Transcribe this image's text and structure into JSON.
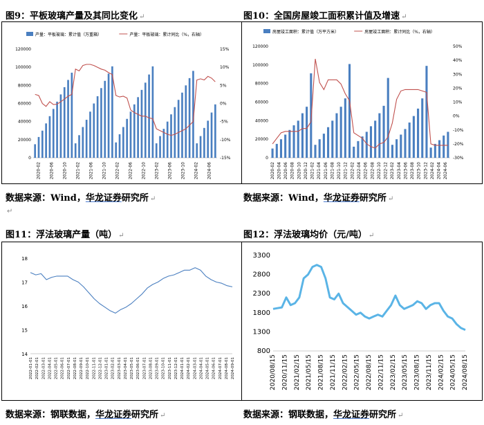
{
  "panels": {
    "p9": {
      "title": "图9：平板玻璃产量及其同比变化",
      "source_prefix": "数据来源：Wind，",
      "source_brand": "华龙证券",
      "source_suffix": "研究所"
    },
    "p10": {
      "title": "图10：全国房屋竣工面积累计值及增速",
      "source_prefix": "数据来源：Wind，",
      "source_brand": "华龙证券",
      "source_suffix": "研究所"
    },
    "p11": {
      "title": "图11：浮法玻璃产量（吨）",
      "source_prefix": "数据来源：钢联数据，",
      "source_brand": "华龙证券",
      "source_suffix": "研究所"
    },
    "p12": {
      "title": "图12：浮法玻璃均价（元/吨）",
      "source_prefix": "数据来源：钢联数据，",
      "source_brand": "华龙证券",
      "source_suffix": "研究所"
    }
  },
  "chart_data": [
    {
      "id": "c9",
      "type": "bar",
      "legend": [
        "产量：平板玻璃：累计值（万重箱）",
        "产量：平板玻璃：累计同比（%，右轴）"
      ],
      "legend_position": "top",
      "colors": {
        "bar": "#4a7fc0",
        "line": "#c0504d"
      },
      "ylim": [
        0,
        120000
      ],
      "yticks": [
        "0",
        "20000",
        "40000",
        "60000",
        "80000",
        "100000",
        "120000"
      ],
      "y2lim": [
        -15,
        15
      ],
      "y2ticks": [
        "-15%",
        "-10%",
        "-5%",
        "0%",
        "5%",
        "10%",
        "15%"
      ],
      "xticks": [
        "2020-02",
        "2020-06",
        "2020-10",
        "2021-02",
        "2021-06",
        "2021-10",
        "2022-02",
        "2022-06",
        "2022-10",
        "2023-02",
        "2023-06",
        "2023-10",
        "2024-02",
        "2024-06"
      ],
      "bars": [
        15000,
        23000,
        30000,
        38000,
        46000,
        54000,
        62000,
        70000,
        78000,
        86000,
        94000,
        16000,
        25000,
        34000,
        42000,
        51000,
        60000,
        68000,
        77000,
        85000,
        93000,
        101000,
        17000,
        26000,
        34000,
        43000,
        51000,
        59000,
        67000,
        75000,
        83000,
        92000,
        101000,
        16000,
        24000,
        32000,
        40000,
        48000,
        56000,
        64000,
        72000,
        80000,
        88000,
        96000,
        16000,
        24000,
        33000,
        41000,
        50000,
        59000
      ],
      "line": [
        2.5,
        2.2,
        0.0,
        -0.8,
        0.5,
        -0.3,
        -0.2,
        0.5,
        1.2,
        2.0,
        2.5,
        9.5,
        9.0,
        10.5,
        10.8,
        10.8,
        10.5,
        10.0,
        9.5,
        9.2,
        8.5,
        8.0,
        2.2,
        1.8,
        2.0,
        1.5,
        -1.8,
        -2.5,
        -3.0,
        -3.5,
        -3.5,
        -4.0,
        -4.2,
        -7.0,
        -7.5,
        -8.0,
        -8.5,
        -8.8,
        -8.5,
        -8.0,
        -7.5,
        -7.0,
        -6.0,
        -5.0,
        6.5,
        6.8,
        6.5,
        7.5,
        7.0,
        6.0
      ]
    },
    {
      "id": "c10",
      "type": "bar",
      "legend": [
        "房屋竣工面积：累计值（万平方米）",
        "房屋竣工面积：累计同比（%，右轴）"
      ],
      "legend_position": "top",
      "colors": {
        "bar": "#4a7fc0",
        "line": "#c0504d"
      },
      "ylim": [
        0,
        120000
      ],
      "yticks": [
        "0",
        "20000",
        "40000",
        "60000",
        "80000",
        "100000",
        "120000"
      ],
      "y2lim": [
        -30,
        50
      ],
      "y2ticks": [
        "-30%",
        "-20%",
        "-10%",
        "0%",
        "10%",
        "20%",
        "30%",
        "40%",
        "50%"
      ],
      "xticks": [
        "2020-02",
        "2020-04",
        "2020-06",
        "2020-08",
        "2020-10",
        "2020-12",
        "2021-02",
        "2021-04",
        "2021-06",
        "2021-08",
        "2021-10",
        "2021-12",
        "2022-02",
        "2022-04",
        "2022-06",
        "2022-08",
        "2022-10",
        "2022-12",
        "2023-02",
        "2023-04",
        "2023-06",
        "2023-08",
        "2023-10",
        "2023-12",
        "2024-02",
        "2024-04",
        "2024-06"
      ],
      "bars": [
        10000,
        15000,
        20000,
        25000,
        30000,
        35000,
        40000,
        48000,
        55000,
        91000,
        14000,
        20000,
        26000,
        33000,
        40000,
        48000,
        55000,
        64000,
        101000,
        12000,
        18000,
        23000,
        28000,
        34000,
        40000,
        48000,
        56000,
        86000,
        14000,
        20000,
        25000,
        31000,
        38000,
        45000,
        53000,
        64000,
        99000,
        11000,
        15000,
        19000,
        24000,
        28000
      ],
      "line": [
        -20,
        -16,
        -12,
        -11,
        -11,
        -11,
        -11,
        -9,
        -9,
        -4,
        41,
        24,
        19,
        26,
        26,
        26,
        23,
        16,
        11,
        -12,
        -14,
        -16,
        -20,
        -22,
        -23,
        -20,
        -19,
        -15,
        -5,
        12,
        18,
        19,
        19,
        19,
        19,
        18,
        17,
        -20,
        -21,
        -21,
        -21,
        -21
      ]
    },
    {
      "id": "c11",
      "type": "line",
      "colors": {
        "line": "#4a7fc0"
      },
      "ylim": [
        14,
        18
      ],
      "yticks": [
        "14",
        "15",
        "16",
        "17",
        "18"
      ],
      "xticks": [
        "2022-01-01",
        "2022-02-01",
        "2022-03-01",
        "2022-04-01",
        "2022-05-01",
        "2022-06-01",
        "2022-07-01",
        "2022-08-01",
        "2022-09-01",
        "2022-10-01",
        "2022-11-01",
        "2022-12-01",
        "2023-01-01",
        "2023-02-01",
        "2023-03-01",
        "2023-04-01",
        "2023-05-01",
        "2023-06-01",
        "2023-07-01",
        "2023-08-01",
        "2023-09-01",
        "2023-10-01",
        "2023-11-01",
        "2023-12-01",
        "2024-01-01",
        "2024-02-01",
        "2024-03-01",
        "2024-04-01",
        "2024-05-01",
        "2024-06-01",
        "2024-07-01",
        "2024-08-01",
        "2024-09-01"
      ],
      "values": [
        17.4,
        17.3,
        17.35,
        17.1,
        17.2,
        17.25,
        17.25,
        17.25,
        17.1,
        17.0,
        16.8,
        16.55,
        16.3,
        16.1,
        15.95,
        15.8,
        15.7,
        15.85,
        15.95,
        16.1,
        16.3,
        16.5,
        16.75,
        16.9,
        17.0,
        17.15,
        17.25,
        17.3,
        17.4,
        17.5,
        17.5,
        17.6,
        17.5,
        17.25,
        17.1,
        17.0,
        16.95,
        16.85,
        16.8
      ]
    },
    {
      "id": "c12",
      "type": "line",
      "colors": {
        "line": "#5ab4e6"
      },
      "ylim": [
        800,
        3300
      ],
      "yticks": [
        "800",
        "1300",
        "1800",
        "2300",
        "2800",
        "3300"
      ],
      "xticks": [
        "2020/08/15",
        "2020/11/15",
        "2021/02/15",
        "2021/05/15",
        "2021/08/15",
        "2021/11/15",
        "2022/02/15",
        "2022/05/15",
        "2022/08/15",
        "2022/11/15",
        "2023/02/15",
        "2023/05/15",
        "2023/08/15",
        "2023/11/15",
        "2024/02/15",
        "2024/05/15",
        "2024/08/15"
      ],
      "values": [
        1900,
        1920,
        1940,
        2200,
        2000,
        2050,
        2200,
        2700,
        2800,
        3000,
        3050,
        3000,
        2700,
        2200,
        2150,
        2300,
        2050,
        1950,
        1850,
        1750,
        1800,
        1700,
        1650,
        1700,
        1750,
        1700,
        1850,
        2000,
        2250,
        2000,
        1900,
        1950,
        2000,
        2100,
        2050,
        1900,
        2000,
        2050,
        2050,
        1850,
        1700,
        1650,
        1500,
        1400,
        1350
      ]
    }
  ]
}
